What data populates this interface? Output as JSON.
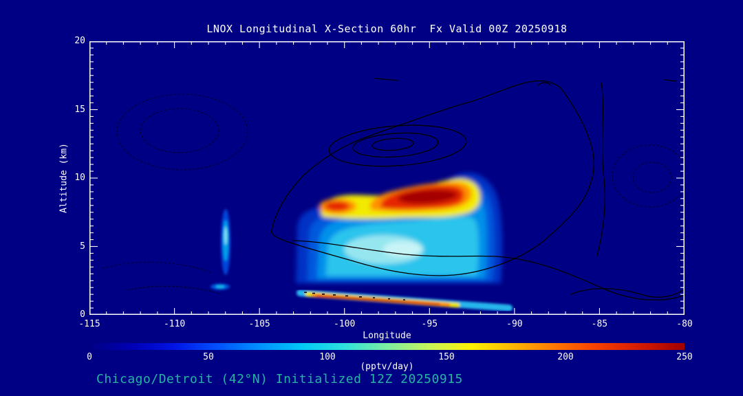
{
  "title": "LNOX Longitudinal X-Section 60hr  Fx Valid 00Z 20250918",
  "subtitle": "Chicago/Detroit (42°N) Initialized 12Z 20250915",
  "colors": {
    "background": "#000084",
    "text": "#ffffff",
    "frame": "#ffffff",
    "subtitle-text": "#26b3a6"
  },
  "axes": {
    "x": {
      "label": "Longitude",
      "ticks": [
        "-115",
        "-110",
        "-105",
        "-100",
        "-95",
        "-90",
        "-85",
        "-80"
      ],
      "range": [
        -115,
        -80
      ]
    },
    "y": {
      "label": "Altitude (km)",
      "ticks": [
        "20",
        "15",
        "10",
        "5",
        "0"
      ],
      "range": [
        0,
        20
      ]
    }
  },
  "colorbar": {
    "units": "(pptv/day)",
    "ticks": [
      "0",
      "50",
      "100",
      "150",
      "200",
      "250"
    ],
    "min": 0,
    "max": 250,
    "colors": [
      "#000084",
      "#0000b4",
      "#0014e6",
      "#0050ff",
      "#0090ff",
      "#00c8f5",
      "#2ee0dc",
      "#7ceea0",
      "#c8f55a",
      "#fff200",
      "#ffb400",
      "#ff7300",
      "#f53c00",
      "#d21900",
      "#a00000"
    ]
  },
  "chart_data": {
    "type": "heatmap",
    "title": "LNOX Longitudinal X-Section 60hr Fx Valid 00Z 20250918",
    "xlabel": "Longitude",
    "ylabel": "Altitude (km)",
    "xlim": [
      -115,
      -80
    ],
    "ylim": [
      0,
      20
    ],
    "value_units": "pptv/day",
    "value_range": [
      0,
      250
    ],
    "colormap": "rainbow blue-cyan-yellow-orange-red; 0 value equals dark navy background",
    "features": [
      {
        "name": "elevated-plume",
        "lon_range": [
          -103,
          -91
        ],
        "alt_range_km": [
          2.5,
          10.3
        ],
        "core": {
          "lon_range": [
            -99.5,
            -92.5
          ],
          "alt_range_km": [
            7.3,
            9.8
          ],
          "value": "200-250"
        },
        "secondary_core": {
          "lon_range": [
            -101.5,
            -99.5
          ],
          "alt_range_km": [
            7.2,
            8.6
          ],
          "value": "150-220"
        },
        "base": {
          "lon_range": [
            -102.5,
            -92
          ],
          "alt_range_km": [
            2.5,
            7
          ],
          "value": "25-110"
        }
      },
      {
        "name": "near-surface-band",
        "lon_range": [
          -102.5,
          -89.5
        ],
        "alt_range_km": [
          0.7,
          2.3
        ],
        "core": {
          "lon_range": [
            -101,
            -94.5
          ],
          "value": "180-250"
        },
        "shape": "thin band sloping downward from ~2 km at -101 to ~1 km at -91, weak cyan tail to -89.5"
      },
      {
        "name": "weak-column",
        "lon_range": [
          -107.3,
          -106.6
        ],
        "alt_range_km": [
          3.3,
          7.2
        ],
        "value": "25-110"
      },
      {
        "name": "weak-low-spot",
        "lon": -107.4,
        "alt_km": 2.0,
        "value": "25-90"
      }
    ],
    "overlay": {
      "solid_contours": "black solid contours of secondary field; nested closed maxima centered near lon -97 at 12.5 km; large irregular contour spanning lon -104 to -81 between ~3 and 17.5 km; long contour crossing plume near 4-5 km descending toward lower right",
      "dashed_contours": "faint dotted closed contours near lon -110 at 10-16 km and near lon -85 at 8-12 km, plus dotted arcs in lower-left corner"
    },
    "legend_position": "horizontal colorbar below x-axis"
  }
}
